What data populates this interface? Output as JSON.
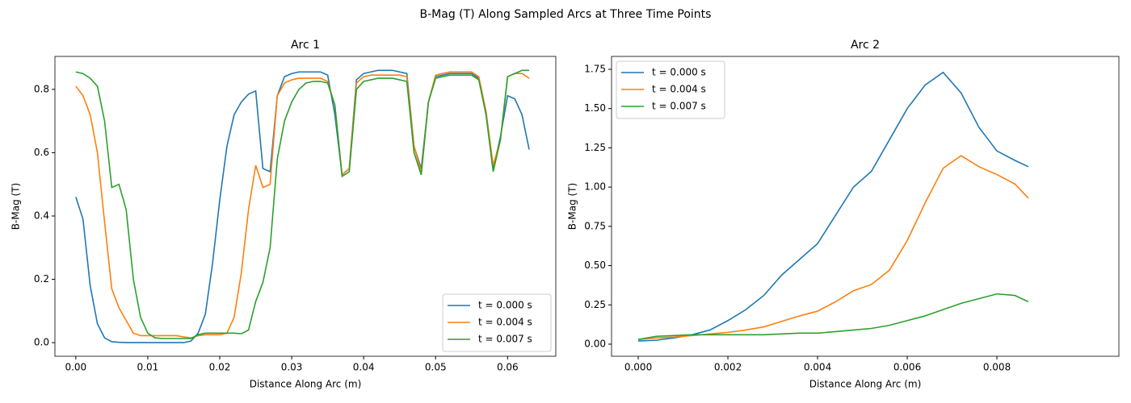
{
  "title": "B-Mag (T) Along Sampled Arcs at Three Time Points",
  "chart_data": [
    {
      "type": "line",
      "title": "Arc 1",
      "xlabel": "Distance Along Arc (m)",
      "ylabel": "B-Mag (T)",
      "legend": "lower right",
      "grid": false,
      "xlim": [
        -0.0029,
        0.0667
      ],
      "ylim": [
        -0.043,
        0.904
      ],
      "xticks": [
        {
          "value": 0,
          "label": "0.00"
        },
        {
          "value": 0.01,
          "label": "0.01"
        },
        {
          "value": 0.02,
          "label": "0.02"
        },
        {
          "value": 0.03,
          "label": "0.03"
        },
        {
          "value": 0.04,
          "label": "0.04"
        },
        {
          "value": 0.05,
          "label": "0.05"
        },
        {
          "value": 0.06,
          "label": "0.06"
        }
      ],
      "yticks": [
        {
          "value": 0,
          "label": "0.0"
        },
        {
          "value": 0.2,
          "label": "0.2"
        },
        {
          "value": 0.4,
          "label": "0.4"
        },
        {
          "value": 0.6,
          "label": "0.6"
        },
        {
          "value": 0.8,
          "label": "0.8"
        }
      ],
      "x": [
        0,
        0.001,
        0.002,
        0.003,
        0.004,
        0.005,
        0.006,
        0.007,
        0.008,
        0.009,
        0.01,
        0.011,
        0.012,
        0.013,
        0.014,
        0.015,
        0.016,
        0.017,
        0.018,
        0.019,
        0.02,
        0.021,
        0.022,
        0.023,
        0.024,
        0.025,
        0.026,
        0.027,
        0.028,
        0.029,
        0.03,
        0.031,
        0.032,
        0.033,
        0.034,
        0.035,
        0.036,
        0.037,
        0.038,
        0.039,
        0.04,
        0.041,
        0.042,
        0.043,
        0.044,
        0.045,
        0.046,
        0.047,
        0.048,
        0.049,
        0.05,
        0.051,
        0.052,
        0.053,
        0.054,
        0.055,
        0.056,
        0.057,
        0.058,
        0.059,
        0.06,
        0.061,
        0.062,
        0.063
      ],
      "series": [
        {
          "name": "t = 0.000 s",
          "color": "#1f77b4",
          "values": [
            0.46,
            0.39,
            0.18,
            0.06,
            0.015,
            0.003,
            0.001,
            0,
            0,
            0,
            0,
            0,
            0,
            0,
            0,
            0,
            0.005,
            0.03,
            0.09,
            0.25,
            0.45,
            0.62,
            0.72,
            0.76,
            0.785,
            0.795,
            0.55,
            0.54,
            0.78,
            0.84,
            0.85,
            0.855,
            0.855,
            0.855,
            0.855,
            0.845,
            0.72,
            0.53,
            0.55,
            0.83,
            0.85,
            0.855,
            0.86,
            0.86,
            0.86,
            0.855,
            0.85,
            0.62,
            0.55,
            0.76,
            0.84,
            0.845,
            0.85,
            0.85,
            0.85,
            0.85,
            0.835,
            0.73,
            0.55,
            0.65,
            0.78,
            0.77,
            0.72,
            0.61
          ]
        },
        {
          "name": "t = 0.004 s",
          "color": "#ff7f0e",
          "values": [
            0.81,
            0.78,
            0.72,
            0.6,
            0.38,
            0.17,
            0.11,
            0.07,
            0.03,
            0.022,
            0.022,
            0.022,
            0.022,
            0.022,
            0.022,
            0.018,
            0.015,
            0.022,
            0.025,
            0.025,
            0.025,
            0.03,
            0.08,
            0.22,
            0.42,
            0.56,
            0.49,
            0.5,
            0.78,
            0.82,
            0.83,
            0.835,
            0.835,
            0.835,
            0.835,
            0.825,
            0.75,
            0.53,
            0.55,
            0.82,
            0.84,
            0.845,
            0.845,
            0.845,
            0.845,
            0.845,
            0.84,
            0.62,
            0.54,
            0.76,
            0.845,
            0.85,
            0.855,
            0.855,
            0.855,
            0.855,
            0.84,
            0.73,
            0.56,
            0.64,
            0.84,
            0.85,
            0.85,
            0.835
          ]
        },
        {
          "name": "t = 0.007 s",
          "color": "#2ca02c",
          "values": [
            0.855,
            0.85,
            0.835,
            0.81,
            0.7,
            0.49,
            0.5,
            0.42,
            0.2,
            0.08,
            0.03,
            0.015,
            0.013,
            0.013,
            0.013,
            0.013,
            0.013,
            0.025,
            0.03,
            0.03,
            0.03,
            0.03,
            0.03,
            0.028,
            0.04,
            0.13,
            0.19,
            0.3,
            0.58,
            0.7,
            0.76,
            0.8,
            0.82,
            0.825,
            0.825,
            0.82,
            0.75,
            0.525,
            0.54,
            0.8,
            0.825,
            0.83,
            0.835,
            0.835,
            0.835,
            0.83,
            0.825,
            0.6,
            0.53,
            0.76,
            0.835,
            0.84,
            0.845,
            0.845,
            0.845,
            0.845,
            0.83,
            0.72,
            0.54,
            0.64,
            0.84,
            0.85,
            0.86,
            0.86
          ]
        }
      ]
    },
    {
      "type": "line",
      "title": "Arc 2",
      "xlabel": "Distance Along Arc (m)",
      "ylabel": "B-Mag (T)",
      "legend": "upper left",
      "grid": false,
      "xlim": [
        -0.000595,
        0.01072
      ],
      "ylim": [
        -0.077,
        1.832
      ],
      "xticks": [
        {
          "value": 0,
          "label": "0.000"
        },
        {
          "value": 0.002,
          "label": "0.002"
        },
        {
          "value": 0.004,
          "label": "0.004"
        },
        {
          "value": 0.006,
          "label": "0.006"
        },
        {
          "value": 0.008,
          "label": "0.008"
        }
      ],
      "yticks": [
        {
          "value": 0,
          "label": "0.00"
        },
        {
          "value": 0.25,
          "label": "0.25"
        },
        {
          "value": 0.5,
          "label": "0.50"
        },
        {
          "value": 0.75,
          "label": "0.75"
        },
        {
          "value": 1,
          "label": "1.00"
        },
        {
          "value": 1.25,
          "label": "1.25"
        },
        {
          "value": 1.5,
          "label": "1.50"
        },
        {
          "value": 1.75,
          "label": "1.75"
        }
      ],
      "x": [
        0,
        0.0004,
        0.0008,
        0.0012,
        0.0016,
        0.002,
        0.0024,
        0.0028,
        0.0032,
        0.0036,
        0.004,
        0.0044,
        0.0048,
        0.0052,
        0.0056,
        0.006,
        0.0064,
        0.0068,
        0.0072,
        0.0076,
        0.008,
        0.0084,
        0.0087
      ],
      "series": [
        {
          "name": "t = 0.000 s",
          "color": "#1f77b4",
          "values": [
            0.02,
            0.025,
            0.04,
            0.06,
            0.09,
            0.15,
            0.22,
            0.31,
            0.44,
            0.54,
            0.64,
            0.82,
            1.0,
            1.1,
            1.3,
            1.5,
            1.65,
            1.73,
            1.6,
            1.38,
            1.23,
            1.17,
            1.13
          ]
        },
        {
          "name": "t = 0.004 s",
          "color": "#ff7f0e",
          "values": [
            0.03,
            0.04,
            0.045,
            0.055,
            0.065,
            0.075,
            0.09,
            0.11,
            0.145,
            0.18,
            0.21,
            0.27,
            0.34,
            0.38,
            0.47,
            0.66,
            0.9,
            1.12,
            1.2,
            1.13,
            1.08,
            1.02,
            0.93
          ]
        },
        {
          "name": "t = 0.007 s",
          "color": "#2ca02c",
          "values": [
            0.03,
            0.05,
            0.055,
            0.06,
            0.06,
            0.06,
            0.06,
            0.06,
            0.065,
            0.07,
            0.07,
            0.08,
            0.09,
            0.1,
            0.12,
            0.15,
            0.18,
            0.22,
            0.26,
            0.29,
            0.32,
            0.31,
            0.27
          ]
        }
      ]
    }
  ]
}
